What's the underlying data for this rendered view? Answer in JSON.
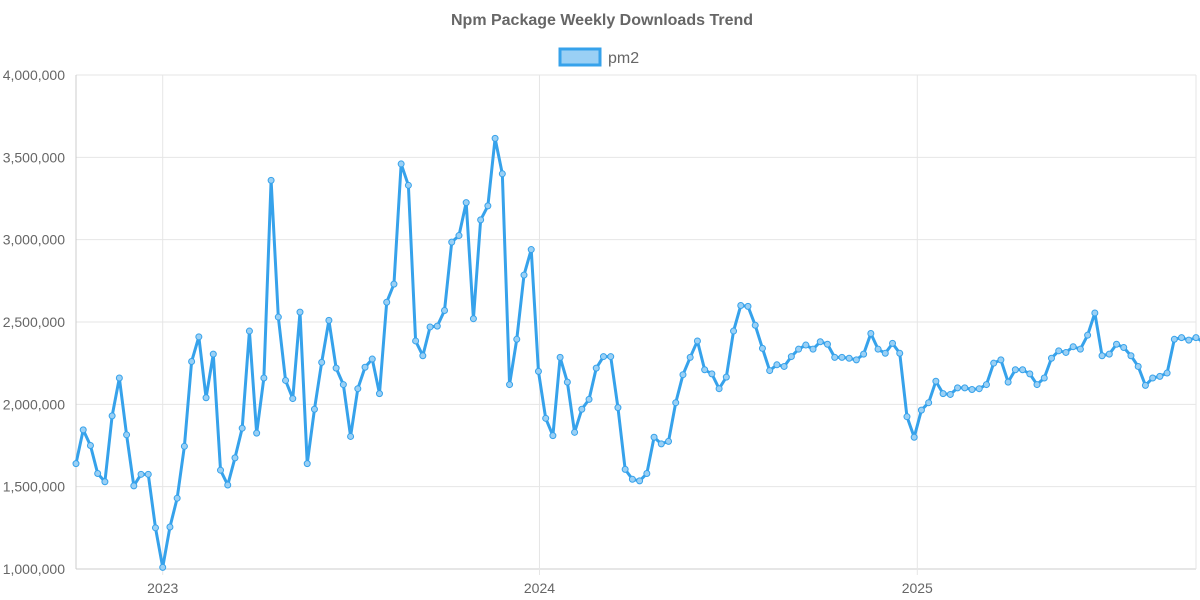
{
  "chart_data": {
    "type": "line",
    "title": "Npm Package Weekly Downloads Trend",
    "xlabel": "",
    "ylabel": "",
    "ylim": [
      1000000,
      4000000
    ],
    "yticks": [
      "1,000,000",
      "1,500,000",
      "2,000,000",
      "2,500,000",
      "3,000,000",
      "3,500,000",
      "4,000,000"
    ],
    "xticks": [
      "2023",
      "2024",
      "2025"
    ],
    "x_start": "2022-10-09",
    "x_interval": "1 week",
    "xlim": [
      "2022-10-09",
      "2025-09-28"
    ],
    "legend_position": "top",
    "grid": true,
    "series": [
      {
        "name": "pm2",
        "color": "#36a2eb",
        "fill": "#9ad0f5",
        "values": [
          1640000,
          1845000,
          1750000,
          1580000,
          1530000,
          1930000,
          2160000,
          1815000,
          1505000,
          1575000,
          1575000,
          1250000,
          1010000,
          1255000,
          1430000,
          1745000,
          2260000,
          2410000,
          2040000,
          2305000,
          1600000,
          1510000,
          1675000,
          1855000,
          2445000,
          1825000,
          2160000,
          3360000,
          2530000,
          2145000,
          2035000,
          2560000,
          1640000,
          1970000,
          2255000,
          2510000,
          2220000,
          2120000,
          1805000,
          2095000,
          2225000,
          2275000,
          2065000,
          2620000,
          2730000,
          3460000,
          3330000,
          2385000,
          2295000,
          2470000,
          2475000,
          2570000,
          2985000,
          3025000,
          3225000,
          2520000,
          3120000,
          3205000,
          3615000,
          3400000,
          2120000,
          2395000,
          2785000,
          2940000,
          2200000,
          1915000,
          1810000,
          2285000,
          2135000,
          1830000,
          1970000,
          2030000,
          2220000,
          2290000,
          2290000,
          1980000,
          1605000,
          1545000,
          1535000,
          1580000,
          1800000,
          1760000,
          1775000,
          2010000,
          2180000,
          2285000,
          2385000,
          2210000,
          2185000,
          2095000,
          2165000,
          2445000,
          2600000,
          2595000,
          2480000,
          2340000,
          2205000,
          2240000,
          2230000,
          2290000,
          2335000,
          2360000,
          2335000,
          2380000,
          2365000,
          2285000,
          2285000,
          2280000,
          2270000,
          2305000,
          2430000,
          2335000,
          2310000,
          2370000,
          2310000,
          1925000,
          1800000,
          1965000,
          2010000,
          2140000,
          2065000,
          2060000,
          2100000,
          2100000,
          2090000,
          2095000,
          2120000,
          2250000,
          2270000,
          2135000,
          2210000,
          2210000,
          2185000,
          2120000,
          2160000,
          2280000,
          2325000,
          2315000,
          2350000,
          2335000,
          2420000,
          2555000,
          2295000,
          2305000,
          2365000,
          2345000,
          2295000,
          2230000,
          2115000,
          2160000,
          2170000,
          2190000,
          2395000,
          2405000,
          2390000,
          2405000,
          2380000
        ]
      }
    ]
  }
}
